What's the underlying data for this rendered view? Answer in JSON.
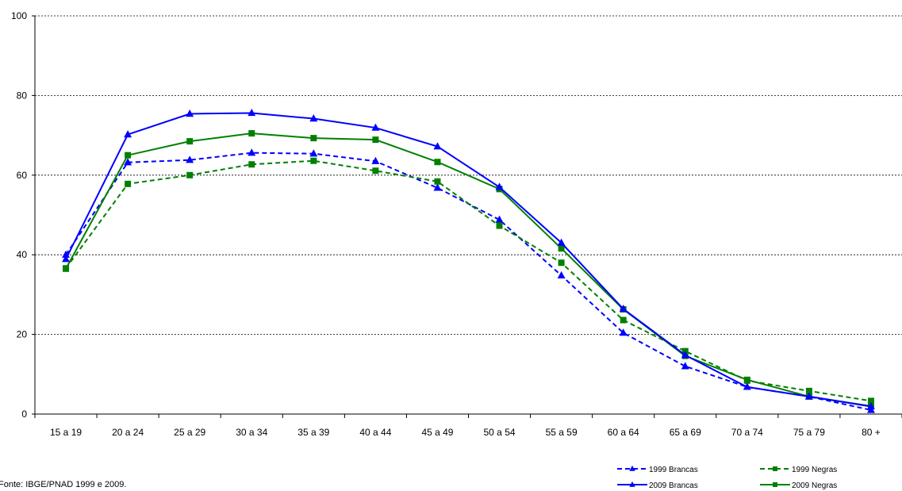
{
  "source_note": "Fonte: IBGE/PNAD 1999 e 2009.",
  "chart_data": {
    "type": "line",
    "title": "",
    "xlabel": "",
    "ylabel": "",
    "ylim": [
      0,
      100
    ],
    "yticks": [
      0,
      20,
      40,
      60,
      80,
      100
    ],
    "grid": "horizontal dashed",
    "legend_position": "bottom-right",
    "categories": [
      "15 a 19",
      "20 a 24",
      "25 a 29",
      "30 a 34",
      "35 a 39",
      "40 a 44",
      "45 a 49",
      "50 a 54",
      "55 a 59",
      "60 a 64",
      "65 a 69",
      "70 a 74",
      "75 a 79",
      "80 +"
    ],
    "series": [
      {
        "name": "1999 Brancas",
        "color": "#0000ff",
        "style": "dashed",
        "marker": "triangle",
        "values": [
          40.0,
          63.2,
          63.8,
          65.6,
          65.4,
          63.5,
          56.8,
          48.8,
          34.8,
          20.4,
          12.0,
          6.8,
          4.4,
          1.0
        ]
      },
      {
        "name": "1999 Negras",
        "color": "#008000",
        "style": "dashed",
        "marker": "square",
        "values": [
          36.6,
          57.8,
          60.0,
          62.7,
          63.6,
          61.1,
          58.4,
          47.3,
          38.0,
          23.6,
          15.8,
          8.4,
          5.8,
          3.3
        ]
      },
      {
        "name": "2009 Brancas",
        "color": "#0000ff",
        "style": "solid",
        "marker": "triangle",
        "values": [
          38.9,
          70.2,
          75.4,
          75.6,
          74.2,
          71.9,
          67.2,
          57.0,
          43.0,
          26.4,
          14.8,
          6.8,
          4.4,
          1.9
        ]
      },
      {
        "name": "2009 Negras",
        "color": "#008000",
        "style": "solid",
        "marker": "square",
        "values": [
          36.5,
          65.0,
          68.5,
          70.5,
          69.3,
          68.9,
          63.3,
          56.5,
          41.6,
          26.3,
          14.6,
          8.6,
          4.4,
          2.0
        ]
      }
    ]
  }
}
